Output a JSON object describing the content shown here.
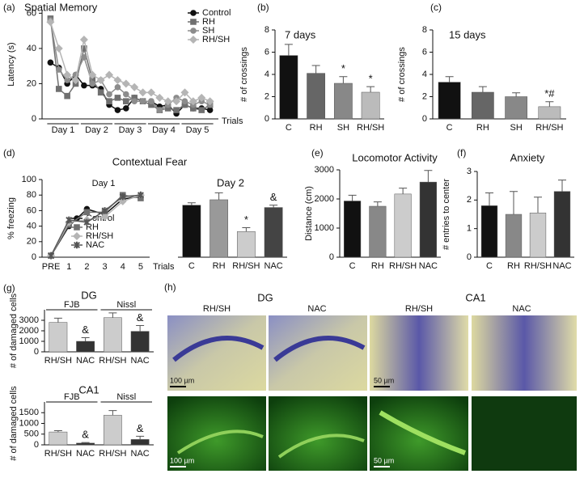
{
  "chart_data": [
    {
      "type": "line",
      "label": "(a)",
      "title": "Spatial Memory",
      "ylabel": "Latency (s)",
      "xlabel": "Trials",
      "x": [
        1,
        2,
        3,
        4,
        5,
        6,
        7,
        8,
        9,
        10,
        11,
        12,
        13,
        14,
        15,
        16,
        17,
        18,
        19,
        20
      ],
      "xlim": [
        0,
        21
      ],
      "groups": [
        "Day 1",
        "Day 2",
        "Day 3",
        "Day 4",
        "Day 5"
      ],
      "ylim": [
        0,
        62
      ],
      "yticks": [
        0,
        20,
        40,
        60
      ],
      "series": [
        {
          "name": "Control",
          "color": "#111111",
          "marker": "circle",
          "values": [
            32,
            29,
            20,
            25,
            19,
            19,
            17,
            8,
            5,
            6,
            12,
            10,
            10,
            7,
            8,
            3,
            8,
            6,
            6,
            5
          ]
        },
        {
          "name": "RH",
          "color": "#707070",
          "marker": "square",
          "values": [
            57,
            17,
            13,
            20,
            40,
            22,
            15,
            10,
            12,
            10,
            12,
            10,
            8,
            5,
            6,
            5,
            8,
            6,
            5,
            8
          ]
        },
        {
          "name": "SH",
          "color": "#8c8c8c",
          "marker": "circle",
          "values": [
            56,
            28,
            22,
            25,
            35,
            20,
            22,
            14,
            18,
            14,
            10,
            10,
            10,
            5,
            8,
            12,
            10,
            8,
            10,
            8
          ]
        },
        {
          "name": "RH/SH",
          "color": "#b5b5b5",
          "marker": "diamond",
          "values": [
            55,
            40,
            25,
            22,
            45,
            25,
            22,
            25,
            22,
            20,
            18,
            15,
            15,
            12,
            10,
            10,
            15,
            10,
            12,
            10
          ]
        }
      ]
    },
    {
      "type": "bar",
      "label": "(b)",
      "title": "7 days",
      "ylabel": "# of crossings",
      "categories": [
        "C",
        "RH",
        "SH",
        "RH/SH"
      ],
      "values": [
        5.7,
        4.1,
        3.2,
        2.4
      ],
      "errors": [
        1.0,
        0.7,
        0.6,
        0.5
      ],
      "colors": [
        "#111111",
        "#666666",
        "#888888",
        "#bbbbbb"
      ],
      "annotations": [
        null,
        null,
        "*",
        "*"
      ],
      "ylim": [
        0,
        8
      ],
      "yticks": [
        0,
        2,
        4,
        6,
        8
      ]
    },
    {
      "type": "bar",
      "label": "(c)",
      "title": "15 days",
      "ylabel": "# of crossings",
      "categories": [
        "C",
        "RH",
        "SH",
        "RH/SH"
      ],
      "values": [
        3.3,
        2.4,
        2.0,
        1.1
      ],
      "errors": [
        0.5,
        0.5,
        0.35,
        0.45
      ],
      "colors": [
        "#111111",
        "#666666",
        "#888888",
        "#bbbbbb"
      ],
      "annotations": [
        null,
        null,
        null,
        "*#"
      ],
      "ylim": [
        0,
        8
      ],
      "yticks": [
        0,
        2,
        4,
        6,
        8
      ]
    },
    {
      "type": "line",
      "label": "(d)",
      "title": "Contextual Fear",
      "subtitle": "Day 1",
      "ylabel": "% freezing",
      "xlabel": "Trials",
      "categories": [
        "PRE",
        "1",
        "2",
        "3",
        "4",
        "5"
      ],
      "ylim": [
        0,
        100
      ],
      "yticks": [
        0,
        20,
        40,
        60,
        80,
        100
      ],
      "series": [
        {
          "name": "Control",
          "color": "#111111",
          "marker": "circle",
          "values": [
            2,
            40,
            62,
            55,
            75,
            78
          ]
        },
        {
          "name": "RH",
          "color": "#707070",
          "marker": "square",
          "values": [
            2,
            42,
            58,
            58,
            80,
            76
          ]
        },
        {
          "name": "RH/SH",
          "color": "#b5b5b5",
          "marker": "diamond",
          "values": [
            2,
            45,
            48,
            52,
            72,
            80
          ]
        },
        {
          "name": "NAC",
          "color": "#555555",
          "marker": "star",
          "values": [
            2,
            48,
            45,
            60,
            78,
            80
          ]
        }
      ]
    },
    {
      "type": "bar",
      "title": "Day 2",
      "categories": [
        "C",
        "RH",
        "RH/SH",
        "NAC"
      ],
      "values": [
        67,
        74,
        33,
        64
      ],
      "errors": [
        3,
        9,
        5,
        3
      ],
      "colors": [
        "#111111",
        "#999999",
        "#cccccc",
        "#444444"
      ],
      "annotations": [
        null,
        null,
        "*",
        "&"
      ],
      "ylim": [
        0,
        100
      ]
    },
    {
      "type": "bar",
      "label": "(e)",
      "title": "Locomotor Activity",
      "ylabel": "Distance (cm)",
      "categories": [
        "C",
        "RH",
        "RH/SH",
        "NAC"
      ],
      "values": [
        1930,
        1750,
        2170,
        2580
      ],
      "errors": [
        200,
        150,
        200,
        400
      ],
      "colors": [
        "#111111",
        "#888888",
        "#cccccc",
        "#333333"
      ],
      "ylim": [
        0,
        3000
      ],
      "yticks": [
        0,
        1000,
        2000,
        3000
      ]
    },
    {
      "type": "bar",
      "label": "(f)",
      "title": "Anxiety",
      "ylabel": "# entries to center",
      "categories": [
        "C",
        "RH",
        "RH/SH",
        "NAC"
      ],
      "values": [
        1.8,
        1.5,
        1.55,
        2.3
      ],
      "errors": [
        0.45,
        0.8,
        0.55,
        0.4
      ],
      "colors": [
        "#111111",
        "#888888",
        "#cccccc",
        "#333333"
      ],
      "ylim": [
        0,
        3
      ],
      "yticks": [
        0,
        1,
        2,
        3
      ]
    },
    {
      "type": "bar",
      "label": "(g)",
      "title": "DG",
      "ylabel": "# of damaged cells",
      "groups": [
        "FJB",
        "Nissl"
      ],
      "categories": [
        "RH/SH",
        "NAC",
        "RH/SH",
        "NAC"
      ],
      "values": [
        2800,
        1000,
        3250,
        1950
      ],
      "errors": [
        400,
        350,
        450,
        550
      ],
      "colors": [
        "#cccccc",
        "#333333",
        "#cccccc",
        "#333333"
      ],
      "annotations": [
        null,
        "&",
        null,
        "&"
      ],
      "ylim": [
        0,
        4000
      ],
      "yticks": [
        0,
        1000,
        2000,
        3000
      ]
    },
    {
      "type": "bar",
      "title": "CA1",
      "ylabel": "# of damaged cells",
      "groups": [
        "FJB",
        "Nissl"
      ],
      "categories": [
        "RH/SH",
        "NAC",
        "RH/SH",
        "NAC"
      ],
      "values": [
        600,
        80,
        1380,
        250
      ],
      "errors": [
        60,
        30,
        220,
        150
      ],
      "colors": [
        "#cccccc",
        "#333333",
        "#cccccc",
        "#333333"
      ],
      "annotations": [
        null,
        "&",
        null,
        "&"
      ],
      "ylim": [
        0,
        2000
      ],
      "yticks": [
        0,
        500,
        1000,
        1500
      ]
    }
  ],
  "figure_h": {
    "label": "(h)",
    "regions": [
      "DG",
      "CA1"
    ],
    "columns": [
      "RH/SH",
      "NAC",
      "RH/SH",
      "NAC"
    ],
    "scale_bars": [
      "100 µm",
      "50 µm",
      "100 µm",
      "50 µm"
    ]
  }
}
